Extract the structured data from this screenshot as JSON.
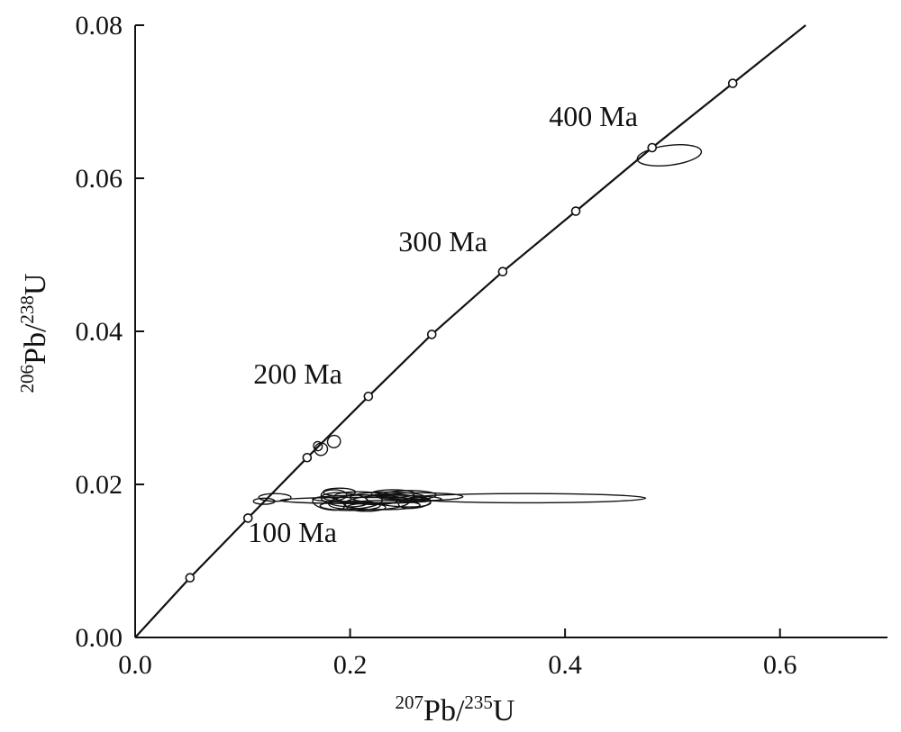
{
  "chart_data": {
    "type": "scatter",
    "subtype": "concordia-diagram",
    "title": "",
    "xlabel": {
      "sup1": "207",
      "main1": "Pb/",
      "sup2": "235",
      "main2": "U"
    },
    "ylabel": {
      "sup1": "206",
      "main1": "Pb/",
      "sup2": "238",
      "main2": "U"
    },
    "xlim": [
      0.0,
      0.7
    ],
    "ylim": [
      0.0,
      0.08
    ],
    "x_ticks": [
      {
        "value": 0.0,
        "label": "0.0"
      },
      {
        "value": 0.2,
        "label": "0.2"
      },
      {
        "value": 0.4,
        "label": "0.4"
      },
      {
        "value": 0.6,
        "label": "0.6"
      }
    ],
    "y_ticks": [
      {
        "value": 0.0,
        "label": "0.00"
      },
      {
        "value": 0.02,
        "label": "0.02"
      },
      {
        "value": 0.04,
        "label": "0.04"
      },
      {
        "value": 0.06,
        "label": "0.06"
      },
      {
        "value": 0.08,
        "label": "0.08"
      }
    ],
    "grid": false,
    "concordia_age_markers": [
      {
        "x": 0.051,
        "y": 0.0078
      },
      {
        "x": 0.105,
        "y": 0.0156
      },
      {
        "x": 0.16,
        "y": 0.0235
      },
      {
        "x": 0.217,
        "y": 0.0315
      },
      {
        "x": 0.276,
        "y": 0.0396
      },
      {
        "x": 0.342,
        "y": 0.0478
      },
      {
        "x": 0.41,
        "y": 0.0557
      },
      {
        "x": 0.481,
        "y": 0.064
      },
      {
        "x": 0.556,
        "y": 0.0724
      }
    ],
    "annotations": [
      {
        "text": "100 Ma",
        "x": 0.105,
        "y": 0.0125
      },
      {
        "text": "200 Ma",
        "x": 0.11,
        "y": 0.0332
      },
      {
        "text": "300 Ma",
        "x": 0.245,
        "y": 0.0505
      },
      {
        "text": "400 Ma",
        "x": 0.385,
        "y": 0.0668
      }
    ],
    "ellipses": [
      {
        "cx": 0.497,
        "cy": 0.063,
        "rx": 0.03,
        "ry": 0.0013,
        "rot": -7
      },
      {
        "cx": 0.185,
        "cy": 0.0256,
        "rx": 0.006,
        "ry": 0.0008,
        "rot": -20
      },
      {
        "cx": 0.173,
        "cy": 0.0246,
        "rx": 0.006,
        "ry": 0.0008,
        "rot": -25
      },
      {
        "cx": 0.17,
        "cy": 0.025,
        "rx": 0.004,
        "ry": 0.0006,
        "rot": -30
      },
      {
        "cx": 0.365,
        "cy": 0.0182,
        "rx": 0.11,
        "ry": 0.0006,
        "rot": 0
      },
      {
        "cx": 0.265,
        "cy": 0.0184,
        "rx": 0.04,
        "ry": 0.0005,
        "rot": 0
      },
      {
        "cx": 0.225,
        "cy": 0.0181,
        "rx": 0.06,
        "ry": 0.0005,
        "rot": 0
      },
      {
        "cx": 0.205,
        "cy": 0.0179,
        "rx": 0.07,
        "ry": 0.0004,
        "rot": 0
      },
      {
        "cx": 0.13,
        "cy": 0.0183,
        "rx": 0.015,
        "ry": 0.0005,
        "rot": 0
      },
      {
        "cx": 0.12,
        "cy": 0.0178,
        "rx": 0.01,
        "ry": 0.0004,
        "rot": 0
      },
      {
        "cx": 0.185,
        "cy": 0.0186,
        "rx": 0.012,
        "ry": 0.0007,
        "rot": 0
      },
      {
        "cx": 0.195,
        "cy": 0.018,
        "rx": 0.022,
        "ry": 0.0009,
        "rot": 5
      },
      {
        "cx": 0.205,
        "cy": 0.0177,
        "rx": 0.025,
        "ry": 0.0009,
        "rot": -4
      },
      {
        "cx": 0.215,
        "cy": 0.0182,
        "rx": 0.03,
        "ry": 0.0008,
        "rot": 3
      },
      {
        "cx": 0.225,
        "cy": 0.0176,
        "rx": 0.03,
        "ry": 0.0009,
        "rot": -2
      },
      {
        "cx": 0.235,
        "cy": 0.0183,
        "rx": 0.035,
        "ry": 0.0007,
        "rot": 0
      },
      {
        "cx": 0.245,
        "cy": 0.0179,
        "rx": 0.03,
        "ry": 0.0008,
        "rot": 4
      },
      {
        "cx": 0.2,
        "cy": 0.0172,
        "rx": 0.028,
        "ry": 0.0006,
        "rot": 0
      },
      {
        "cx": 0.23,
        "cy": 0.0173,
        "rx": 0.035,
        "ry": 0.0006,
        "rot": 0
      },
      {
        "cx": 0.255,
        "cy": 0.0186,
        "rx": 0.025,
        "ry": 0.0006,
        "rot": 0
      },
      {
        "cx": 0.19,
        "cy": 0.019,
        "rx": 0.015,
        "ry": 0.0005,
        "rot": 0
      },
      {
        "cx": 0.215,
        "cy": 0.017,
        "rx": 0.018,
        "ry": 0.0005,
        "rot": 0
      },
      {
        "cx": 0.24,
        "cy": 0.0188,
        "rx": 0.02,
        "ry": 0.0005,
        "rot": 0
      },
      {
        "cx": 0.18,
        "cy": 0.0175,
        "rx": 0.015,
        "ry": 0.0008,
        "rot": 10
      },
      {
        "cx": 0.26,
        "cy": 0.0176,
        "rx": 0.015,
        "ry": 0.0007,
        "rot": -6
      }
    ]
  }
}
